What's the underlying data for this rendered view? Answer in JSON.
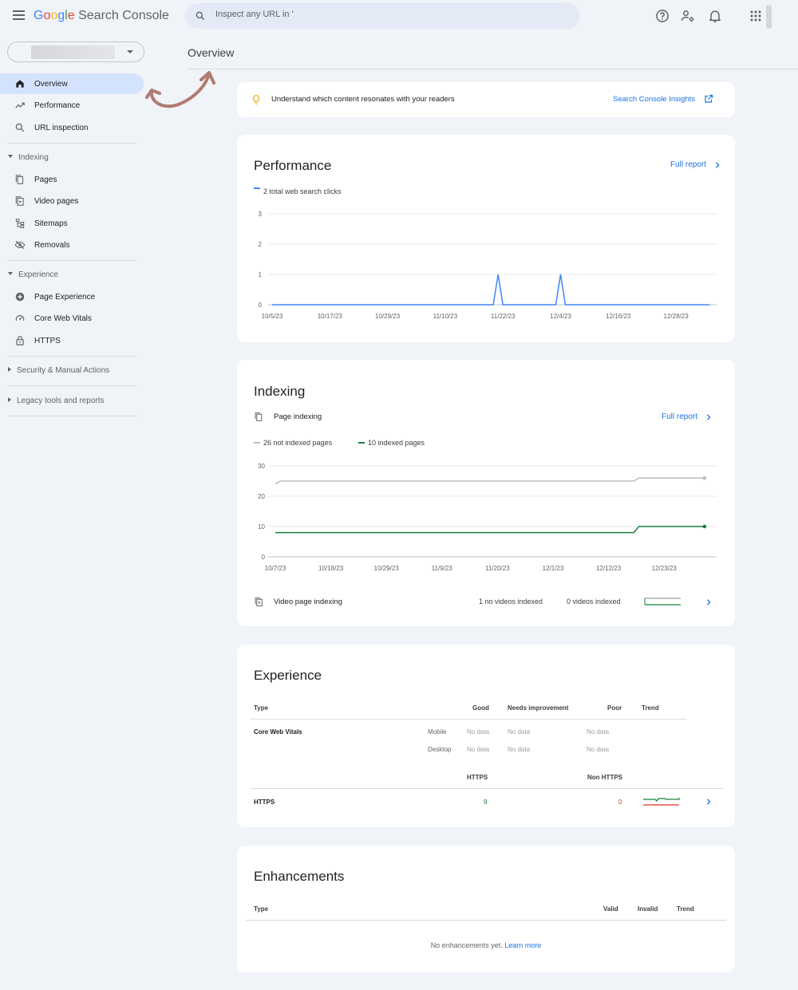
{
  "header": {
    "logo_google": "Google",
    "logo_product": "Search Console",
    "search_placeholder": "Inspect any URL in '",
    "icons": [
      "menu-icon",
      "search-icon",
      "help-icon",
      "manage-users-icon",
      "notifications-icon",
      "apps-icon"
    ]
  },
  "sidebar": {
    "items": [
      {
        "label": "Overview",
        "icon": "home-icon",
        "active": true
      },
      {
        "label": "Performance",
        "icon": "trending-up-icon"
      },
      {
        "label": "URL inspection",
        "icon": "search-icon"
      }
    ],
    "indexing": {
      "title": "Indexing",
      "items": [
        {
          "label": "Pages",
          "icon": "pages-icon"
        },
        {
          "label": "Video pages",
          "icon": "video-pages-icon"
        },
        {
          "label": "Sitemaps",
          "icon": "sitemap-icon"
        },
        {
          "label": "Removals",
          "icon": "removals-icon"
        }
      ]
    },
    "experience": {
      "title": "Experience",
      "items": [
        {
          "label": "Page Experience",
          "icon": "page-experience-icon"
        },
        {
          "label": "Core Web Vitals",
          "icon": "speed-gauge-icon"
        },
        {
          "label": "HTTPS",
          "icon": "lock-icon"
        }
      ]
    },
    "security": "Security & Manual Actions",
    "legacy": "Legacy tools and reports"
  },
  "main": {
    "title": "Overview",
    "banner": {
      "text": "Understand which content resonates with your readers",
      "link": "Search Console Insights"
    },
    "performance": {
      "title": "Performance",
      "full_report": "Full report",
      "legend": "2 total web search clicks"
    },
    "indexing": {
      "title": "Indexing",
      "page_indexing": "Page indexing",
      "full_report": "Full report",
      "legend_not_indexed": "26 not indexed pages",
      "legend_indexed": "10 indexed pages",
      "video_label": "Video page indexing",
      "video_none": "1 no videos indexed",
      "video_indexed": "0 videos indexed"
    },
    "experience": {
      "title": "Experience",
      "headers": {
        "type": "Type",
        "good": "Good",
        "needs": "Needs improvement",
        "poor": "Poor",
        "trend": "Trend"
      },
      "cwv_label": "Core Web Vitals",
      "mobile": "Mobile",
      "desktop": "Desktop",
      "no_data": "No data",
      "https_header": "HTTPS",
      "non_https_header": "Non HTTPS",
      "https_label": "HTTPS",
      "https_count": "9",
      "non_https_count": "0"
    },
    "enhancements": {
      "title": "Enhancements",
      "headers": {
        "type": "Type",
        "valid": "Valid",
        "invalid": "Invalid",
        "trend": "Trend"
      },
      "empty_text": "No enhancements yet.",
      "learn_more": "Learn more"
    }
  },
  "colors": {
    "accent_blue": "#1a73e8",
    "clicks_line": "#4285f4",
    "not_indexed_line": "#bdbdbd",
    "indexed_line": "#188038",
    "active_nav": "#d3e3fd",
    "annotation_arrow": "#b07c70"
  },
  "chart_data": [
    {
      "type": "line",
      "x": [
        "10/5/23",
        "10/17/23",
        "10/29/23",
        "11/10/23",
        "11/22/23",
        "12/4/23",
        "12/16/23",
        "12/28/23"
      ],
      "series": [
        {
          "name": "2 total web search clicks",
          "points": [
            [
              "10/5/23",
              0
            ],
            [
              "11/20/23",
              0
            ],
            [
              "11/21/23",
              1
            ],
            [
              "11/22/23",
              0
            ],
            [
              "12/3/23",
              0
            ],
            [
              "12/4/23",
              1
            ],
            [
              "12/5/23",
              0
            ],
            [
              "1/4/24",
              0
            ]
          ]
        }
      ],
      "yticks": [
        0,
        1,
        2,
        3
      ],
      "ylim": [
        0,
        3
      ]
    },
    {
      "type": "line",
      "x": [
        "10/7/23",
        "10/18/23",
        "10/29/23",
        "11/9/23",
        "11/20/23",
        "12/1/23",
        "12/12/23",
        "12/23/23"
      ],
      "series": [
        {
          "name": "26 not indexed pages",
          "points": [
            [
              "10/7/23",
              24
            ],
            [
              "10/8/23",
              25
            ],
            [
              "12/17/23",
              25
            ],
            [
              "12/18/23",
              26
            ],
            [
              "12/31/23",
              26
            ]
          ]
        },
        {
          "name": "10 indexed pages",
          "points": [
            [
              "10/7/23",
              8
            ],
            [
              "12/17/23",
              8
            ],
            [
              "12/18/23",
              10
            ],
            [
              "12/31/23",
              10
            ]
          ]
        }
      ],
      "yticks": [
        0,
        10,
        20,
        30
      ],
      "ylim": [
        0,
        30
      ]
    }
  ]
}
